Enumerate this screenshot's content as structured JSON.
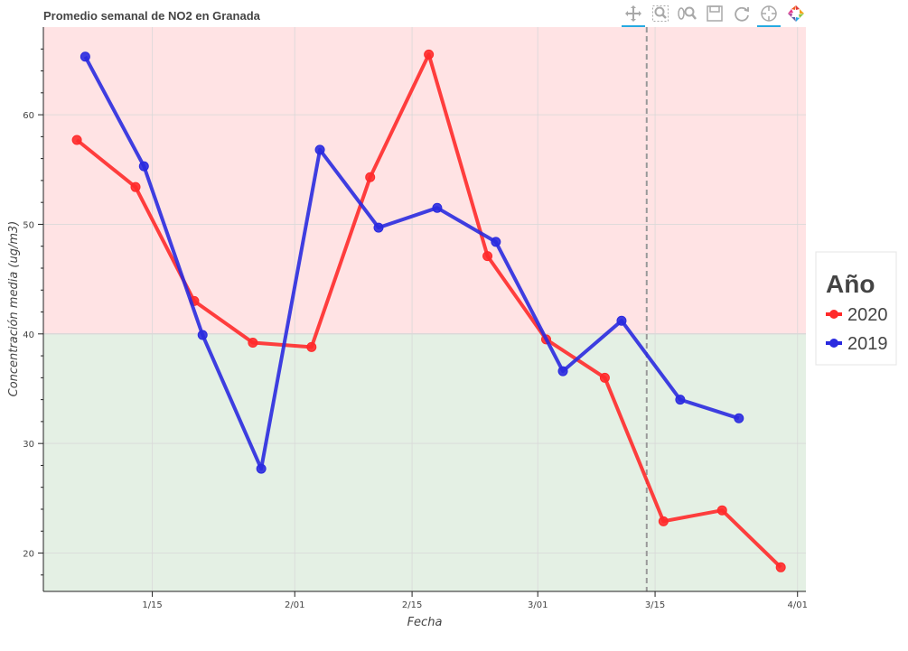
{
  "chart_data": {
    "type": "line",
    "title": "Promedio semanal de NO2 en Granada",
    "xlabel": "Fecha",
    "ylabel": "Concentración media (ug/m3)",
    "x_unit": "date",
    "xlim": [
      "2020-01-02",
      "2020-04-02"
    ],
    "ylim": [
      16.5,
      68.0
    ],
    "x_ticks": [
      {
        "date": "2020-01-15",
        "label": "1/15"
      },
      {
        "date": "2020-02-01",
        "label": "2/01"
      },
      {
        "date": "2020-02-15",
        "label": "2/15"
      },
      {
        "date": "2020-03-01",
        "label": "3/01"
      },
      {
        "date": "2020-03-15",
        "label": "3/15"
      },
      {
        "date": "2020-04-01",
        "label": "4/01"
      }
    ],
    "y_ticks": [
      20,
      30,
      40,
      50,
      60
    ],
    "threshold": {
      "value": 40,
      "above_color": "#ffe3e4",
      "below_color": "#e4f0e4"
    },
    "vline": {
      "date": "2020-03-14",
      "color": "#999999"
    },
    "grid": true,
    "legend": {
      "title": "Año",
      "placement": "right"
    },
    "series": [
      {
        "name": "2020",
        "color": "#ff2a2a",
        "points": [
          {
            "x": "2020-01-06",
            "y": 57.7
          },
          {
            "x": "2020-01-13",
            "y": 53.4
          },
          {
            "x": "2020-01-20",
            "y": 43.0
          },
          {
            "x": "2020-01-27",
            "y": 39.2
          },
          {
            "x": "2020-02-03",
            "y": 38.8
          },
          {
            "x": "2020-02-10",
            "y": 54.3
          },
          {
            "x": "2020-02-17",
            "y": 65.5
          },
          {
            "x": "2020-02-24",
            "y": 47.1
          },
          {
            "x": "2020-03-02",
            "y": 39.5
          },
          {
            "x": "2020-03-09",
            "y": 36.0
          },
          {
            "x": "2020-03-16",
            "y": 22.9
          },
          {
            "x": "2020-03-23",
            "y": 23.9
          },
          {
            "x": "2020-03-30",
            "y": 18.7
          }
        ]
      },
      {
        "name": "2019",
        "color": "#2a2adf",
        "points": [
          {
            "x": "2020-01-07",
            "y": 65.3
          },
          {
            "x": "2020-01-14",
            "y": 55.3
          },
          {
            "x": "2020-01-21",
            "y": 39.9
          },
          {
            "x": "2020-01-28",
            "y": 27.7
          },
          {
            "x": "2020-02-04",
            "y": 56.8
          },
          {
            "x": "2020-02-11",
            "y": 49.7
          },
          {
            "x": "2020-02-18",
            "y": 51.5
          },
          {
            "x": "2020-02-25",
            "y": 48.4
          },
          {
            "x": "2020-03-04",
            "y": 36.6
          },
          {
            "x": "2020-03-11",
            "y": 41.2
          },
          {
            "x": "2020-03-18",
            "y": 34.0
          },
          {
            "x": "2020-03-25",
            "y": 32.3
          }
        ]
      }
    ]
  },
  "toolbar": {
    "tools": [
      {
        "name": "pan-tool",
        "icon": "pan-icon",
        "active": true
      },
      {
        "name": "box-zoom-tool",
        "icon": "box-zoom-icon",
        "active": false
      },
      {
        "name": "wheel-zoom-tool",
        "icon": "wheel-zoom-icon",
        "active": false
      },
      {
        "name": "save-tool",
        "icon": "save-icon",
        "active": false
      },
      {
        "name": "reset-tool",
        "icon": "reset-icon",
        "active": false
      },
      {
        "name": "hover-tool",
        "icon": "crosshair-icon",
        "active": true
      },
      {
        "name": "bokeh-logo",
        "icon": "bokeh-logo-icon",
        "active": false
      }
    ]
  }
}
